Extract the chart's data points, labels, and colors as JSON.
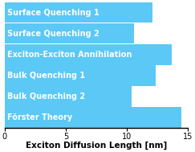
{
  "categories": [
    "Förster Theory",
    "Bulk Quenching 2",
    "Bulk Quenching 1",
    "Exciton-Exciton Annihilation",
    "Surface Quenching 2",
    "Surface Quenching 1"
  ],
  "values": [
    14.5,
    10.4,
    12.4,
    13.7,
    10.6,
    12.1
  ],
  "bar_color": "#5BC8F5",
  "xlim": [
    0,
    15
  ],
  "xticks": [
    0,
    5,
    10,
    15
  ],
  "xlabel": "Exciton Diffusion Length [nm]",
  "background_color": "#ffffff",
  "xlabel_fontsize": 7.5,
  "tick_fontsize": 7,
  "bar_label_fontsize": 7,
  "bar_label_color": "#ffffff",
  "bar_label_fontweight": "bold",
  "bar_height": 0.97,
  "figsize": [
    2.43,
    1.89
  ],
  "dpi": 100
}
